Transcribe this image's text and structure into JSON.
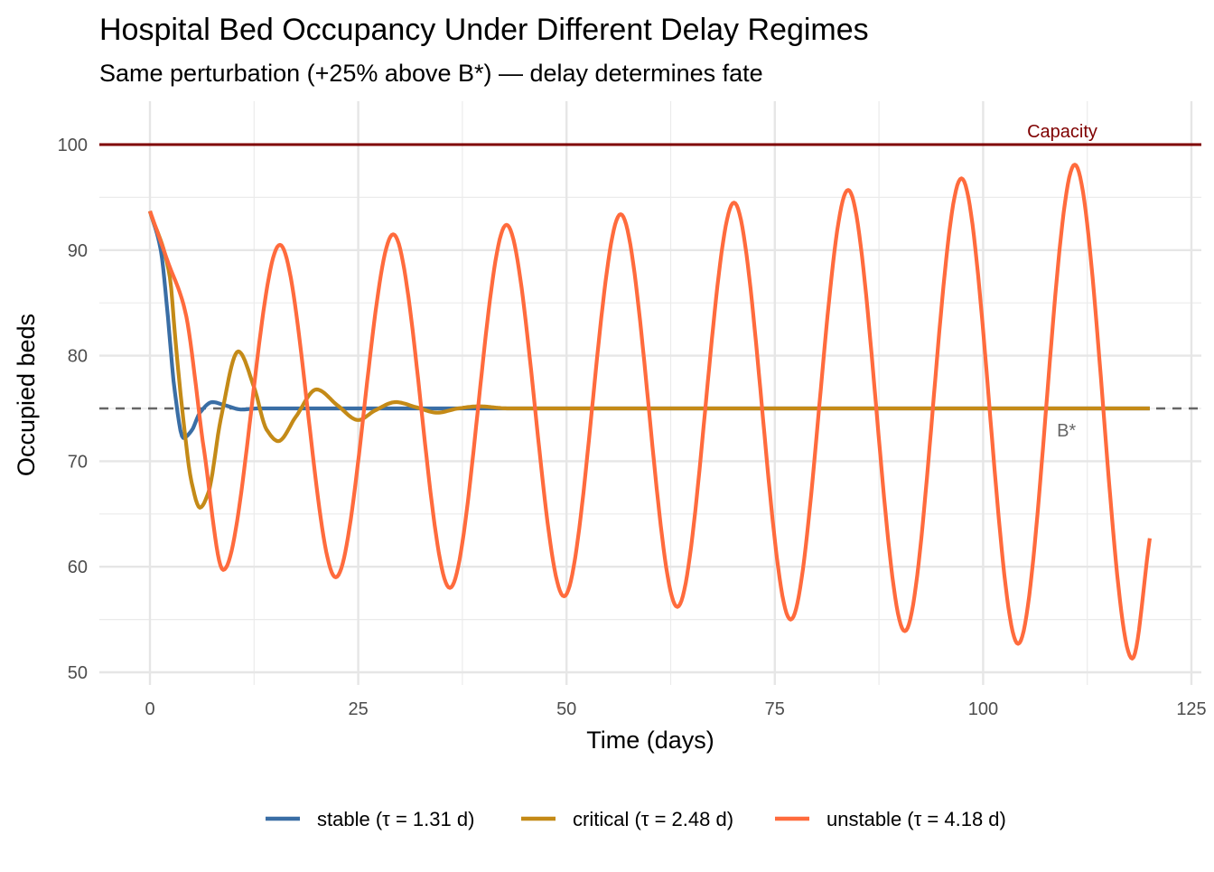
{
  "chart_data": {
    "type": "line",
    "title": "Hospital Bed Occupancy Under Different Delay Regimes",
    "subtitle": "Same perturbation (+25% above B*) — delay determines fate",
    "xlabel": "Time (days)",
    "ylabel": "Occupied beds",
    "xlim": [
      -5,
      126
    ],
    "ylim": [
      49,
      104
    ],
    "xticks": [
      0,
      25,
      50,
      75,
      100,
      125
    ],
    "yticks": [
      50,
      60,
      70,
      80,
      90,
      100
    ],
    "grid": true,
    "legend_position": "bottom",
    "reference_lines": [
      {
        "name": "capacity",
        "value": 100,
        "label": "Capacity",
        "color": "#7f0000",
        "style": "solid",
        "label_x": 109.5
      },
      {
        "name": "equilibrium",
        "value": 75,
        "label": "B*",
        "color": "#666666",
        "style": "dashed",
        "label_x": 110
      }
    ],
    "series": [
      {
        "name": "stable (τ = 1.31 d)",
        "key": "stable",
        "color": "#3a6ea5",
        "points": [
          [
            0,
            93.7
          ],
          [
            1.3,
            90
          ],
          [
            2,
            85
          ],
          [
            3,
            76.5
          ],
          [
            4,
            72.2
          ],
          [
            5,
            72.9
          ],
          [
            6,
            74.6
          ],
          [
            7.5,
            75.6
          ],
          [
            9,
            75.3
          ],
          [
            11,
            74.9
          ],
          [
            13,
            75
          ],
          [
            120,
            75
          ]
        ]
      },
      {
        "name": "critical (τ = 2.48 d)",
        "key": "critical",
        "color": "#c48a17",
        "points": [
          [
            0,
            93.7
          ],
          [
            2.4,
            87.4
          ],
          [
            3,
            82
          ],
          [
            4,
            74
          ],
          [
            5,
            68
          ],
          [
            6,
            65.6
          ],
          [
            7,
            67
          ],
          [
            8.5,
            74
          ],
          [
            10.6,
            80.4
          ],
          [
            12.5,
            77
          ],
          [
            14,
            73
          ],
          [
            15.4,
            71.9
          ],
          [
            17.5,
            74.2
          ],
          [
            20,
            76.8
          ],
          [
            22.5,
            75.3
          ],
          [
            25,
            73.9
          ],
          [
            27,
            74.8
          ],
          [
            29.5,
            75.6
          ],
          [
            32,
            75.1
          ],
          [
            34.5,
            74.6
          ],
          [
            37,
            75
          ],
          [
            39.5,
            75.2
          ],
          [
            43,
            75
          ],
          [
            120,
            75
          ]
        ]
      },
      {
        "name": "unstable (τ = 4.18 d)",
        "key": "unstable",
        "color": "#ff6b3d",
        "points": [
          [
            0,
            93.7
          ],
          [
            2.1,
            89
          ],
          [
            4.2,
            84.3
          ],
          [
            6.5,
            71
          ],
          [
            8.8,
            59.7
          ],
          [
            15.6,
            90.5
          ],
          [
            22.3,
            59
          ],
          [
            29.2,
            91.5
          ],
          [
            36,
            58
          ],
          [
            42.8,
            92.4
          ],
          [
            49.7,
            57.2
          ],
          [
            56.5,
            93.4
          ],
          [
            63.3,
            56.2
          ],
          [
            70.1,
            94.5
          ],
          [
            76.9,
            55
          ],
          [
            83.8,
            95.7
          ],
          [
            90.6,
            53.9
          ],
          [
            97.4,
            96.8
          ],
          [
            104.2,
            52.7
          ],
          [
            111,
            98.1
          ],
          [
            117.9,
            51.3
          ],
          [
            120,
            62.7
          ]
        ]
      }
    ]
  }
}
